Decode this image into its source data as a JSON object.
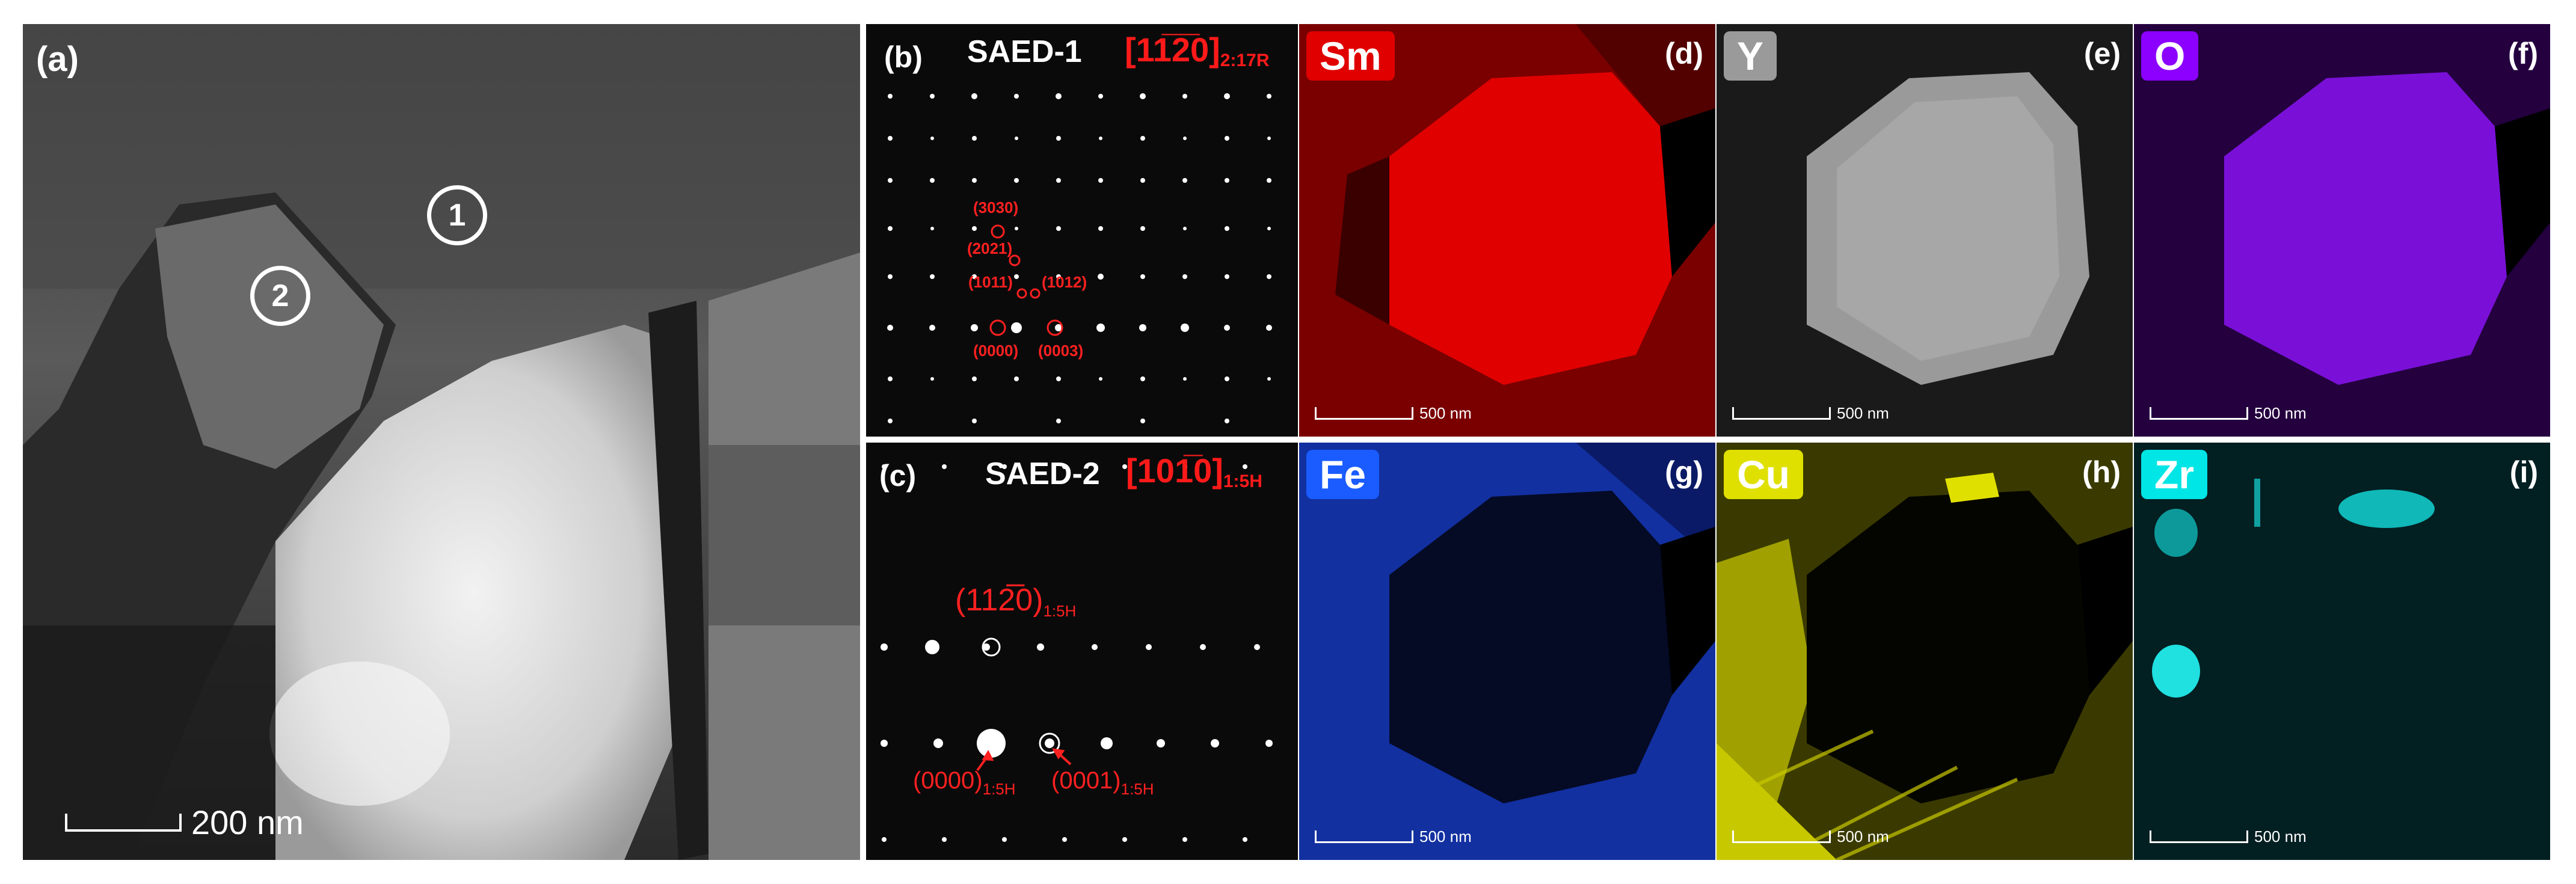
{
  "panels": {
    "a": {
      "label": "(a)",
      "scale_bar": "200 nm",
      "markers": [
        "1",
        "2"
      ]
    },
    "b": {
      "label": "(b)",
      "title": "SAED-1",
      "zone_axis": "[11̅2̅0]",
      "zone_axis_sub": "2:17R",
      "spots": [
        "(3030)",
        "(2021)",
        "(1011)",
        "(1012)",
        "(0000)",
        "(0003)"
      ]
    },
    "c": {
      "label": "(c)",
      "title": "SAED-2",
      "zone_axis": "[101̅0]",
      "zone_axis_sub": "1:5H",
      "spot_main": "(112̅0)",
      "spot_main_sub": "1:5H",
      "spot_origin": "(0000)",
      "spot_origin_sub": "1:5H",
      "spot_0001": "(0001)",
      "spot_0001_sub": "1:5H"
    },
    "d": {
      "label": "(d)",
      "element": "Sm",
      "color": "#e00000",
      "scale_bar": "500 nm"
    },
    "e": {
      "label": "(e)",
      "element": "Y",
      "color": "#9a9a9a",
      "scale_bar": "500 nm"
    },
    "f": {
      "label": "(f)",
      "element": "O",
      "color": "#8b00ff",
      "scale_bar": "500 nm"
    },
    "g": {
      "label": "(g)",
      "element": "Fe",
      "color": "#1a5cff",
      "scale_bar": "500 nm"
    },
    "h": {
      "label": "(h)",
      "element": "Cu",
      "color": "#e0e000",
      "scale_bar": "500 nm"
    },
    "i": {
      "label": "(i)",
      "element": "Zr",
      "color": "#00e5e5",
      "scale_bar": "500 nm"
    }
  }
}
